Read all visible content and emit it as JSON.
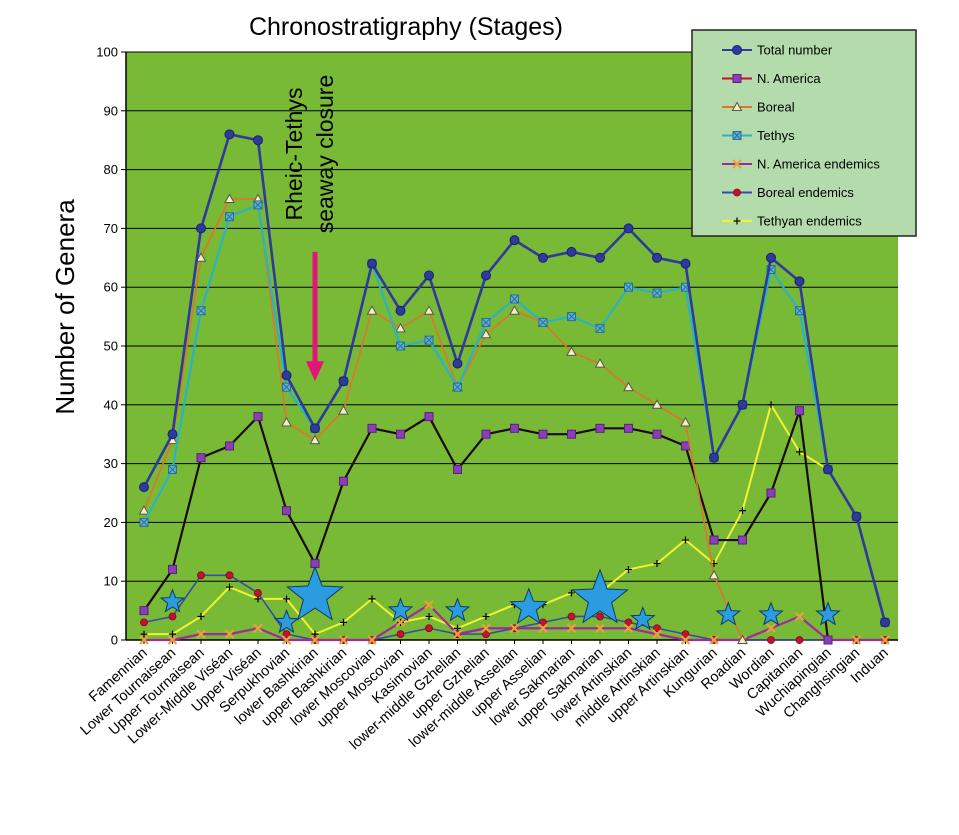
{
  "chart_data": {
    "type": "line",
    "title": "Chronostratigraphy (Stages)",
    "xlabel": "",
    "ylabel": "Number of Genera",
    "ylim": [
      0,
      100
    ],
    "yticks": [
      0,
      10,
      20,
      30,
      40,
      50,
      60,
      70,
      80,
      90,
      100
    ],
    "grid": true,
    "legend_position": "top-right",
    "categories": [
      "Famennian",
      "Lower Tournaisean",
      "Upper Tournaisean",
      "Lower-Middle Viséan",
      "Upper Viséan",
      "Serpukhovian",
      "lower Bashkirian",
      "upper Bashkirian",
      "lower Moscovian",
      "upper Moscovian",
      "Kasimovian",
      "lower-middle Gzhelian",
      "upper Gzhelian",
      "lower-middle Asselian",
      "upper Asselian",
      "lower Sakmarian",
      "upper Sakmarian",
      "lower Artinskian",
      "middle Artinskian",
      "upper Artinskian",
      "Kungurian",
      "Roadian",
      "Wordian",
      "Capitanian",
      "Wuchiapingian",
      "Changhsingian",
      "Induan"
    ],
    "x_positions": [
      0,
      1,
      2,
      3,
      4,
      5,
      6,
      7,
      8,
      9,
      10,
      11,
      12,
      13,
      14,
      15,
      16,
      17,
      18,
      19,
      20,
      21,
      22,
      23,
      24,
      25,
      26
    ],
    "series": [
      {
        "name": "Total number",
        "color": "#2e3a9c",
        "marker": "circle",
        "x": [
          0,
          1,
          2,
          3,
          4,
          5,
          6,
          7,
          8,
          9,
          10,
          11,
          12,
          13,
          14,
          15,
          16,
          17,
          18,
          19,
          20,
          21,
          22,
          23,
          24,
          25,
          26
        ],
        "values": [
          26,
          35,
          70,
          86,
          85,
          45,
          36,
          44,
          64,
          56,
          62,
          47,
          62,
          68,
          65,
          66,
          65,
          70,
          65,
          64,
          31,
          40,
          65,
          61,
          29,
          21,
          3
        ]
      },
      {
        "name": "Tethys",
        "color": "#2ab3c2",
        "marker": "xbox",
        "x": [
          0,
          1,
          2,
          3,
          4,
          5,
          6,
          7,
          8,
          9,
          10,
          11,
          12,
          13,
          14,
          15,
          16,
          17,
          18,
          19,
          20,
          21,
          22,
          23,
          24,
          25,
          26
        ],
        "values": [
          20,
          29,
          56,
          72,
          74,
          43,
          36,
          44,
          64,
          50,
          51,
          43,
          54,
          58,
          54,
          55,
          53,
          60,
          59,
          60,
          31,
          40,
          63,
          56,
          29,
          21,
          3
        ]
      },
      {
        "name": "Boreal",
        "color": "#e0742a",
        "marker": "triangle",
        "x": [
          0,
          1,
          2,
          3,
          4,
          5,
          6,
          7,
          8,
          9,
          10,
          11,
          12,
          13,
          14,
          15,
          16,
          17,
          18,
          19,
          20,
          21
        ],
        "values": [
          22,
          34,
          65,
          75,
          75,
          37,
          34,
          39,
          56,
          53,
          56,
          43,
          52,
          56,
          54,
          49,
          47,
          43,
          40,
          37,
          11,
          0
        ]
      },
      {
        "name": "N. America",
        "color": "#c8102e",
        "marker": "square",
        "x": [
          0,
          1,
          2,
          3,
          4,
          5,
          6,
          7,
          8,
          9,
          10,
          11,
          12,
          13,
          14,
          15,
          16,
          17,
          18,
          19,
          20,
          21,
          22,
          23,
          24
        ],
        "values": [
          5,
          12,
          31,
          33,
          38,
          22,
          13,
          27,
          36,
          35,
          38,
          29,
          35,
          36,
          35,
          35,
          36,
          36,
          35,
          33,
          17,
          17,
          25,
          39,
          0
        ]
      },
      {
        "name": "N. America endemics",
        "color": "#a02a9a",
        "marker": "xstar",
        "x": [
          0,
          1,
          2,
          3,
          4,
          5,
          6,
          7,
          8,
          9,
          10,
          11,
          12,
          13,
          14,
          15,
          16,
          17,
          18,
          19,
          20,
          21,
          22,
          23,
          24,
          25,
          26
        ],
        "values": [
          0,
          0,
          1,
          1,
          2,
          0,
          0,
          0,
          0,
          3,
          6,
          1,
          2,
          2,
          2,
          2,
          2,
          2,
          1,
          0,
          0,
          0,
          2,
          4,
          0,
          0,
          0
        ]
      },
      {
        "name": "Boreal endemics",
        "color": "#3a4aa8",
        "marker": "dot",
        "x": [
          0,
          1,
          2,
          3,
          4,
          5,
          6,
          7,
          8,
          9,
          10,
          11,
          12,
          13,
          14,
          15,
          16,
          17,
          18,
          19,
          20,
          21,
          22,
          23,
          24,
          25,
          26
        ],
        "values": [
          3,
          4,
          11,
          11,
          8,
          1,
          0,
          0,
          0,
          1,
          2,
          1,
          1,
          2,
          3,
          4,
          4,
          3,
          2,
          1,
          0,
          0,
          0,
          0,
          0,
          0,
          0
        ]
      },
      {
        "name": "Tethyan endemics",
        "color": "#f2f230",
        "marker": "plus",
        "x": [
          0,
          1,
          2,
          3,
          4,
          5,
          6,
          7,
          8,
          9,
          10,
          11,
          12,
          13,
          14,
          15,
          16,
          17,
          18,
          19,
          20,
          21,
          22,
          23,
          24
        ],
        "values": [
          1,
          1,
          4,
          9,
          7,
          7,
          1,
          3,
          7,
          3,
          4,
          2,
          4,
          6,
          6,
          8,
          8,
          12,
          13,
          17,
          13,
          22,
          40,
          32,
          29
        ]
      }
    ],
    "annotations": [
      {
        "text": "Rheic-Tethys seaway closure",
        "at_x": 6,
        "arrow_from_y": 66,
        "arrow_to_y": 44
      }
    ],
    "stars": [
      {
        "x": 1,
        "y": 6.5,
        "size": "small"
      },
      {
        "x": 5,
        "y": 3,
        "size": "small"
      },
      {
        "x": 6,
        "y": 7.5,
        "size": "large"
      },
      {
        "x": 9,
        "y": 5,
        "size": "small"
      },
      {
        "x": 11,
        "y": 5,
        "size": "small"
      },
      {
        "x": 13.5,
        "y": 5.5,
        "size": "medium"
      },
      {
        "x": 16,
        "y": 7,
        "size": "large"
      },
      {
        "x": 17.5,
        "y": 3.5,
        "size": "small"
      },
      {
        "x": 20.5,
        "y": 4.3,
        "size": "small"
      },
      {
        "x": 22,
        "y": 4.3,
        "size": "small"
      },
      {
        "x": 24,
        "y": 4.3,
        "size": "small"
      }
    ]
  }
}
